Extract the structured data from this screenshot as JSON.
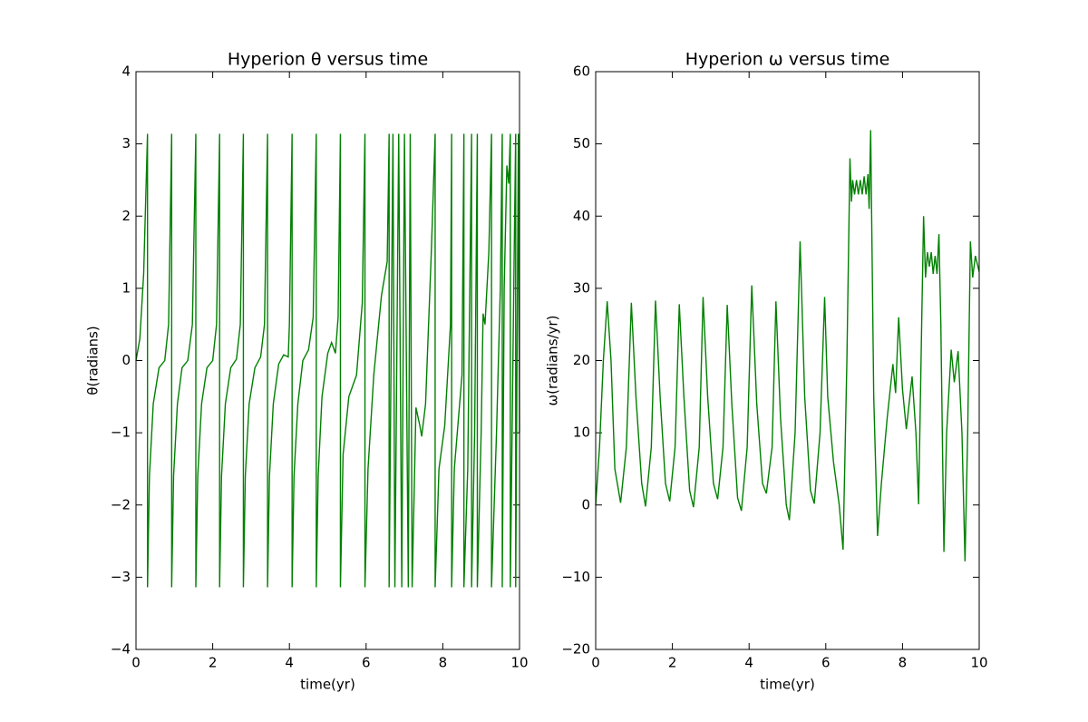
{
  "chart_data": [
    {
      "type": "line",
      "title": "Hyperion θ versus time",
      "x_label": "time(yr)",
      "y_label": "θ(radians)",
      "color": "#008000",
      "xlim": [
        0,
        10
      ],
      "xticks": [
        0,
        2,
        4,
        6,
        8,
        10
      ],
      "ylim": [
        -4,
        4
      ],
      "yticks": [
        {
          "value": -4,
          "label": "−4"
        },
        {
          "value": -3,
          "label": "−3"
        },
        {
          "value": -2,
          "label": "−2"
        },
        {
          "value": -1,
          "label": "−1"
        },
        0,
        1,
        2,
        3,
        4
      ],
      "x": [
        0,
        0.1,
        0.2,
        0.3,
        0.3,
        0.35,
        0.45,
        0.6,
        0.75,
        0.85,
        0.93,
        0.93,
        0.98,
        1.08,
        1.2,
        1.35,
        1.47,
        1.56,
        1.56,
        1.61,
        1.71,
        1.85,
        2.0,
        2.1,
        2.18,
        2.18,
        2.23,
        2.33,
        2.47,
        2.62,
        2.72,
        2.8,
        2.8,
        2.85,
        2.95,
        3.1,
        3.25,
        3.35,
        3.43,
        3.43,
        3.48,
        3.58,
        3.72,
        3.85,
        3.97,
        4.0,
        4.07,
        4.07,
        4.12,
        4.22,
        4.35,
        4.5,
        4.62,
        4.7,
        4.7,
        4.75,
        4.85,
        5.0,
        5.1,
        5.2,
        5.27,
        5.33,
        5.33,
        5.4,
        5.55,
        5.75,
        5.9,
        5.97,
        5.97,
        6.05,
        6.2,
        6.4,
        6.55,
        6.6,
        6.6,
        6.7,
        6.75,
        6.85,
        6.93,
        7.0,
        7.1,
        7.15,
        7.2,
        7.3,
        7.4,
        7.45,
        7.55,
        7.7,
        7.8,
        7.8,
        7.9,
        8.05,
        8.2,
        8.23,
        8.23,
        8.3,
        8.5,
        8.55,
        8.55,
        8.65,
        8.75,
        8.75,
        8.83,
        8.9,
        8.9,
        9.0,
        9.05,
        9.1,
        9.2,
        9.27,
        9.27,
        9.4,
        9.5,
        9.55,
        9.55,
        9.6,
        9.67,
        9.72,
        9.76,
        9.76,
        9.85,
        9.9,
        9.9,
        9.97,
        10.0
      ],
      "values": [
        0,
        0.3,
        1.2,
        3.14,
        -3.14,
        -1.6,
        -0.6,
        -0.1,
        0.0,
        0.5,
        3.14,
        -3.14,
        -1.6,
        -0.6,
        -0.1,
        0.0,
        0.5,
        3.14,
        -3.14,
        -1.6,
        -0.6,
        -0.1,
        0.0,
        0.5,
        3.14,
        -3.14,
        -1.6,
        -0.6,
        -0.1,
        0.02,
        0.5,
        3.14,
        -3.14,
        -1.6,
        -0.6,
        -0.1,
        0.05,
        0.5,
        3.14,
        -3.14,
        -1.6,
        -0.6,
        -0.05,
        0.08,
        0.05,
        0.5,
        3.14,
        -3.14,
        -1.6,
        -0.6,
        0.0,
        0.15,
        0.6,
        3.14,
        -3.14,
        -1.6,
        -0.5,
        0.1,
        0.25,
        0.1,
        0.6,
        3.14,
        -3.14,
        -1.3,
        -0.5,
        -0.2,
        0.8,
        3.14,
        -3.14,
        -1.5,
        -0.2,
        0.9,
        1.37,
        3.14,
        -3.14,
        3.14,
        -3.14,
        3.14,
        -3.14,
        3.14,
        -3.14,
        3.14,
        -3.14,
        -0.65,
        -0.9,
        -1.05,
        -0.6,
        1.5,
        3.14,
        -3.14,
        -1.5,
        -0.9,
        0.5,
        3.14,
        -3.14,
        -1.5,
        -0.2,
        3.14,
        -3.14,
        -1.5,
        3.14,
        -3.14,
        -1.0,
        3.14,
        -3.14,
        -1.0,
        0.65,
        0.5,
        1.5,
        3.14,
        -3.14,
        -1.0,
        1.0,
        3.14,
        -3.14,
        1.0,
        2.7,
        2.45,
        3.14,
        -3.14,
        1.0,
        3.14,
        -3.14,
        3.14,
        -1.0
      ]
    },
    {
      "type": "line",
      "title": "Hyperion ω versus time",
      "x_label": "time(yr)",
      "y_label": "ω(radians/yr)",
      "color": "#008000",
      "xlim": [
        0,
        10
      ],
      "xticks": [
        0,
        2,
        4,
        6,
        8,
        10
      ],
      "ylim": [
        -20,
        60
      ],
      "yticks": [
        {
          "value": -20,
          "label": "−20"
        },
        {
          "value": -10,
          "label": "−10"
        },
        0,
        10,
        20,
        30,
        40,
        50,
        60
      ],
      "x": [
        0,
        0.1,
        0.2,
        0.3,
        0.4,
        0.5,
        0.65,
        0.8,
        0.93,
        1.05,
        1.2,
        1.3,
        1.45,
        1.56,
        1.68,
        1.82,
        1.93,
        2.07,
        2.18,
        2.3,
        2.45,
        2.55,
        2.7,
        2.8,
        2.92,
        3.07,
        3.18,
        3.32,
        3.43,
        3.55,
        3.7,
        3.8,
        3.95,
        4.07,
        4.2,
        4.35,
        4.45,
        4.6,
        4.7,
        4.82,
        4.97,
        5.05,
        5.2,
        5.33,
        5.45,
        5.6,
        5.7,
        5.85,
        5.97,
        6.05,
        6.2,
        6.35,
        6.45,
        6.55,
        6.63,
        6.67,
        6.7,
        6.75,
        6.8,
        6.85,
        6.9,
        6.95,
        7.0,
        7.05,
        7.1,
        7.13,
        7.17,
        7.25,
        7.35,
        7.45,
        7.6,
        7.75,
        7.82,
        7.9,
        8.0,
        8.1,
        8.25,
        8.35,
        8.42,
        8.5,
        8.55,
        8.6,
        8.65,
        8.7,
        8.75,
        8.8,
        8.85,
        8.9,
        8.95,
        9.0,
        9.08,
        9.15,
        9.27,
        9.35,
        9.45,
        9.55,
        9.63,
        9.7,
        9.77,
        9.83,
        9.9,
        10
      ],
      "values": [
        0,
        8,
        20,
        28.2,
        20,
        5,
        0.3,
        8,
        28,
        15,
        3,
        -0.2,
        8,
        28.3,
        15,
        3,
        0.5,
        8,
        27.8,
        15,
        2,
        -0.3,
        8,
        28.8,
        15,
        3,
        0.8,
        8,
        27.7,
        14,
        1,
        -0.8,
        8,
        30.4,
        14,
        3,
        1.6,
        8,
        28.2,
        12,
        0,
        -2.1,
        10,
        36.5,
        15,
        2,
        0.2,
        10,
        28.8,
        15,
        6,
        0,
        -6.2,
        20,
        48,
        42,
        45,
        43,
        45,
        43,
        45,
        43,
        45.5,
        43,
        45.8,
        41,
        51.9,
        15,
        -4.3,
        3,
        12,
        19.5,
        15.5,
        26,
        16,
        10.5,
        17.8,
        10,
        0.1,
        25,
        40,
        31.5,
        35,
        33,
        35,
        32,
        34.5,
        32,
        37.5,
        25,
        -6.5,
        10,
        21.5,
        17,
        21.3,
        10,
        -7.8,
        10,
        36.5,
        31.5,
        34.5,
        32.3
      ]
    }
  ]
}
